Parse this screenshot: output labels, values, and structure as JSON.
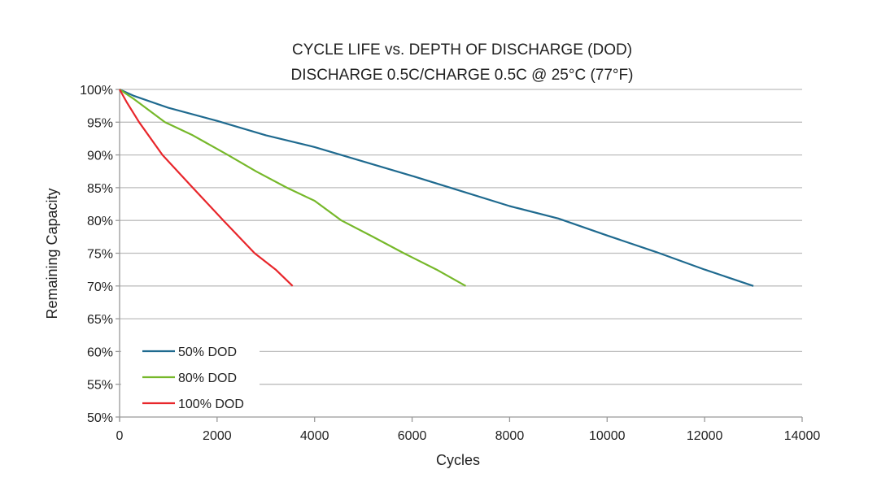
{
  "chart_data": {
    "type": "line",
    "title": "CYCLE LIFE vs. DEPTH OF DISCHARGE (DOD)",
    "subtitle": "DISCHARGE 0.5C/CHARGE 0.5C @ 25°C (77°F)",
    "xlabel": "Cycles",
    "ylabel": "Remaining Capacity",
    "xlim": [
      0,
      14000
    ],
    "ylim": [
      50,
      100
    ],
    "xticks": [
      0,
      2000,
      4000,
      6000,
      8000,
      10000,
      12000,
      14000
    ],
    "xtick_labels": [
      "0",
      "2000",
      "4000",
      "6000",
      "8000",
      "10000",
      "12000",
      "14000"
    ],
    "yticks": [
      100,
      95,
      90,
      85,
      80,
      75,
      70,
      65,
      60,
      55,
      50
    ],
    "ytick_labels": [
      "100%",
      "95%",
      "90%",
      "85%",
      "80%",
      "75%",
      "70%",
      "65%",
      "60%",
      "55%",
      "50%"
    ],
    "grid": "horizontal",
    "legend_position": "bottom-left",
    "series": [
      {
        "name": "50% DOD",
        "color": "#1f6a8f",
        "x": [
          0,
          300,
          1000,
          2000,
          3000,
          4000,
          5000,
          6000,
          7000,
          8000,
          9000,
          10000,
          11000,
          12000,
          13000
        ],
        "y": [
          100,
          99.0,
          97.2,
          95.2,
          93.0,
          91.2,
          89.0,
          86.8,
          84.5,
          82.2,
          80.3,
          77.7,
          75.2,
          72.5,
          70.0
        ]
      },
      {
        "name": "80% DOD",
        "color": "#76b82a",
        "x": [
          0,
          300,
          930,
          1500,
          2220,
          2800,
          3430,
          4000,
          4550,
          5200,
          5830,
          6500,
          7100
        ],
        "y": [
          100,
          98.5,
          95.0,
          93.0,
          90.0,
          87.5,
          85.0,
          83.0,
          80.0,
          77.5,
          75.0,
          72.5,
          70.0
        ]
      },
      {
        "name": "100% DOD",
        "color": "#e8262b",
        "x": [
          0,
          150,
          400,
          880,
          1500,
          2130,
          2770,
          3200,
          3550
        ],
        "y": [
          100,
          98.0,
          95.0,
          90.0,
          85.0,
          80.0,
          75.0,
          72.5,
          70.0
        ]
      }
    ]
  }
}
